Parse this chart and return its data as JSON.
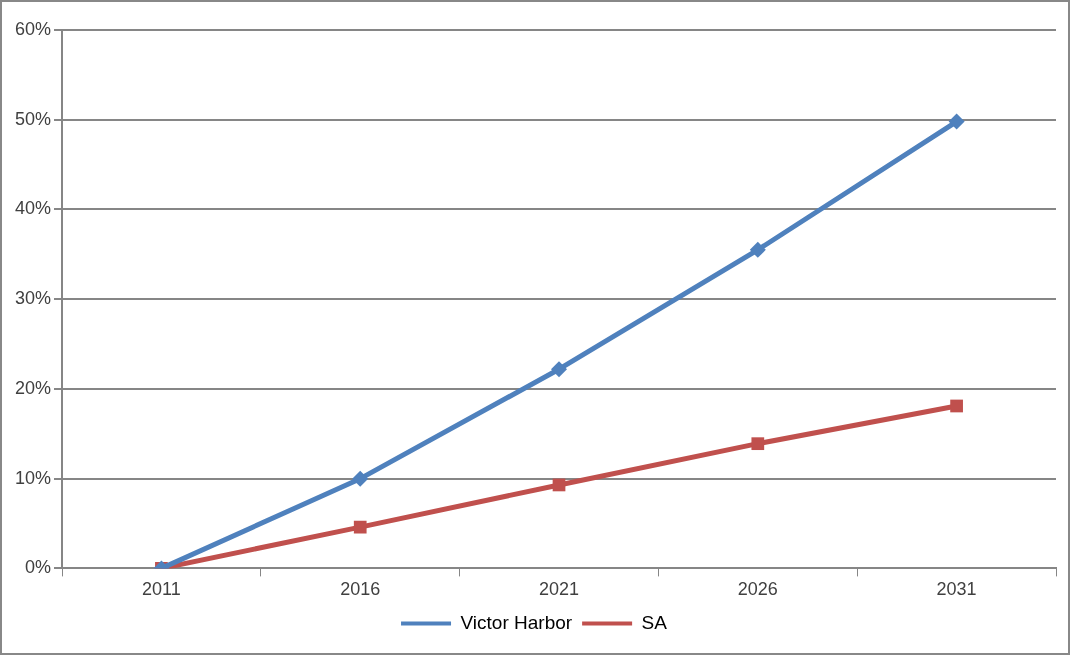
{
  "chart_data": {
    "type": "line",
    "categories": [
      "2011",
      "2016",
      "2021",
      "2026",
      "2031"
    ],
    "series": [
      {
        "name": "Victor Harbor",
        "color": "#4f81bd",
        "marker": "diamond",
        "values": [
          0,
          10,
          22.2,
          35.5,
          49.8
        ]
      },
      {
        "name": "SA",
        "color": "#c0504d",
        "marker": "square",
        "values": [
          0,
          4.6,
          9.3,
          13.9,
          18.1
        ]
      }
    ],
    "ylim": [
      0,
      60
    ],
    "yticks": [
      {
        "value": 0,
        "label": "0%"
      },
      {
        "value": 10,
        "label": "10%"
      },
      {
        "value": 20,
        "label": "20%"
      },
      {
        "value": 30,
        "label": "30%"
      },
      {
        "value": 40,
        "label": "40%"
      },
      {
        "value": 50,
        "label": "50%"
      },
      {
        "value": 60,
        "label": "60%"
      }
    ],
    "grid": "y",
    "legend": "bottom"
  }
}
